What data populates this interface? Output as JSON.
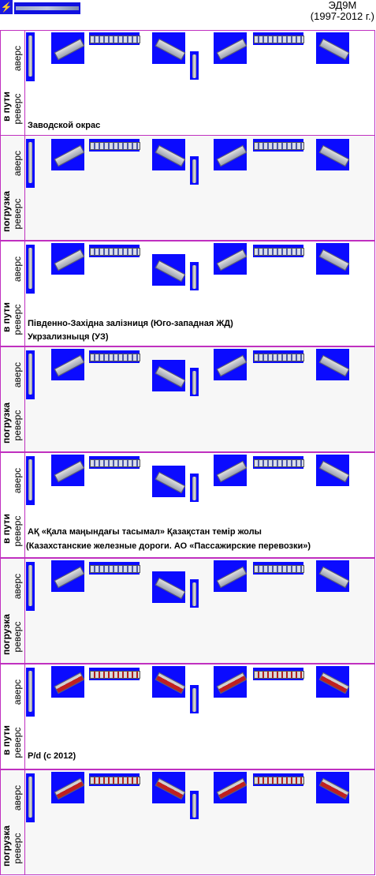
{
  "header": {
    "logo_icon": "⚡",
    "title_line1": "ЭД9М",
    "title_line2": "(1997-2012 г.)"
  },
  "labels": {
    "v_puti": "в пути",
    "pogruzka": "погрузка",
    "avers": "аверс",
    "revers": "реверс"
  },
  "captions": {
    "zavod": "Заводской окрас",
    "uz_line1": "Південно-Західна залізниця (Юго-западная ЖД)",
    "uz_line2": "Укрзализныця (УЗ)",
    "kz_line1": "АҚ «Қала маңындағы тасымал» Қазақстан темір жолы",
    "kz_line2": "(Казахстанские железные дороги. АО «Пассажирские перевозки»)",
    "pd": "P/d (с 2012)"
  },
  "colors": {
    "sprite_bg": "#0b0bff",
    "grid_border": "#c030c0"
  }
}
